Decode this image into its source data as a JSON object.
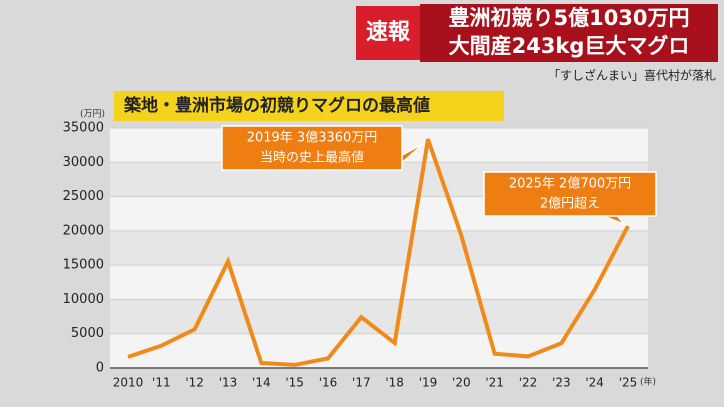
{
  "header": {
    "badge": "速報",
    "headline": [
      "豊洲初競り5億1030万円",
      "大間産243kg巨大マグロ"
    ],
    "subline": "「すしざんまい」喜代村が落札"
  },
  "chart_data": {
    "type": "line",
    "title": "築地・豊洲市場の初競りマグロの最高値",
    "y_unit": "(万円)",
    "x_unit": "(年)",
    "categories": [
      "2010",
      "'11",
      "'12",
      "'13",
      "'14",
      "'15",
      "'16",
      "'17",
      "'18",
      "'19",
      "'20",
      "'21",
      "'22",
      "'23",
      "'24",
      "'25"
    ],
    "values": [
      1628,
      3249,
      5649,
      15540,
      736,
      451,
      1400,
      7420,
      3645,
      33360,
      19320,
      2084,
      1688,
      3604,
      11424,
      20700
    ],
    "color": "#f08a1a",
    "ylim": [
      0,
      35000
    ],
    "yticks": [
      0,
      5000,
      10000,
      15000,
      20000,
      25000,
      30000,
      35000
    ],
    "annotations": [
      [
        "2019年 3億3360万円",
        "当時の史上最高値"
      ],
      [
        "2025年 2億700万円",
        "2億円超え"
      ]
    ]
  }
}
